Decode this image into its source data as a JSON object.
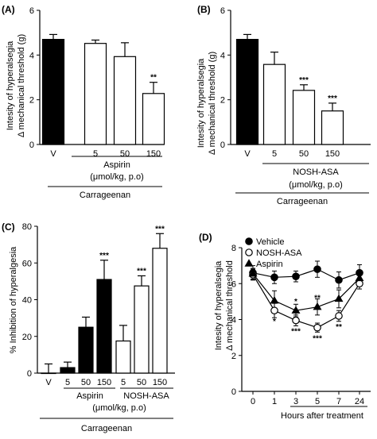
{
  "colors": {
    "filled": "#000000",
    "open": "#ffffff",
    "stroke": "#000000"
  },
  "panels": {
    "A": {
      "label": "(A)",
      "ylabel1": "Intesity of hyperalsegia",
      "ylabel2": "Δ mechanical threshold (g)",
      "bracket1": "Aspirin",
      "bracket1b": "(μmol/kg, p.o)",
      "bracket2": "Carrageenan"
    },
    "B": {
      "label": "(B)",
      "ylabel1": "Intesity of hyperalsegia",
      "ylabel2": "Δ mechanical threshold (g)",
      "bracket1": "NOSH-ASA",
      "bracket1b": "(μmol/kg, p.o)",
      "bracket2": "Carrageenan"
    },
    "C": {
      "label": "(C)",
      "ylabel": "% Inhibition of hyperalgesia",
      "bracket1": "Aspirin",
      "bracket1c": "NOSH-ASA",
      "bracket1b": "(μmol/kg, p.o)",
      "bracket2": "Carrageenan"
    },
    "D": {
      "label": "(D)",
      "ylabel1": "Intesity of hyperalsegia",
      "ylabel2": "Δ mechanical threshold",
      "xlabel": "Hours after treatment"
    }
  },
  "chart_data": [
    {
      "panel": "A",
      "type": "bar",
      "categories": [
        "V",
        "5",
        "50",
        "150"
      ],
      "values": [
        4.7,
        4.52,
        3.93,
        2.28
      ],
      "errors": [
        0.22,
        0.15,
        0.62,
        0.5
      ],
      "fill": [
        "filled",
        "open",
        "open",
        "open"
      ],
      "annotations": [
        "",
        "",
        "",
        "**"
      ],
      "ylim": [
        0,
        6
      ],
      "yticks": [
        0,
        2,
        4,
        6
      ]
    },
    {
      "panel": "B",
      "type": "bar",
      "categories": [
        "V",
        "5",
        "50",
        "150"
      ],
      "values": [
        4.7,
        3.58,
        2.42,
        1.5
      ],
      "errors": [
        0.22,
        0.55,
        0.25,
        0.35
      ],
      "fill": [
        "filled",
        "open",
        "open",
        "open"
      ],
      "annotations": [
        "",
        "",
        "***",
        "***"
      ],
      "ylim": [
        0,
        6
      ],
      "yticks": [
        0,
        2,
        4,
        6
      ]
    },
    {
      "panel": "C",
      "type": "bar",
      "categories": [
        "V",
        "5",
        "50",
        "150",
        "5",
        "50",
        "150"
      ],
      "values": [
        0,
        3,
        25,
        51,
        17.5,
        47.5,
        68
      ],
      "errors": [
        5,
        3,
        5.5,
        10.5,
        8.5,
        5.5,
        8
      ],
      "fill": [
        "open",
        "filled",
        "filled",
        "filled",
        "open",
        "open",
        "open"
      ],
      "annotations": [
        "",
        "",
        "",
        "***",
        "",
        "***",
        "***"
      ],
      "ylim": [
        0,
        80
      ],
      "yticks": [
        0,
        20,
        40,
        60,
        80
      ]
    },
    {
      "panel": "D",
      "type": "line",
      "x": [
        "0",
        "1",
        "3",
        "5",
        "7",
        "24"
      ],
      "series": [
        {
          "name": "Vehicle",
          "marker": "circle-filled",
          "values": [
            6.6,
            6.35,
            6.4,
            6.8,
            6.2,
            6.6
          ],
          "errors": [
            0.4,
            0.35,
            0.3,
            0.45,
            0.45,
            0.45
          ],
          "annotations": [
            "",
            "",
            "",
            "",
            "",
            ""
          ]
        },
        {
          "name": "NOSH-ASA",
          "marker": "circle-open",
          "values": [
            6.5,
            4.5,
            3.95,
            3.55,
            4.2,
            6.0
          ],
          "errors": [
            0.3,
            0.4,
            0.3,
            0.25,
            0.3,
            0.3
          ],
          "annotations": [
            "",
            "*",
            "***",
            "***",
            "**",
            ""
          ]
        },
        {
          "name": "Aspirin",
          "marker": "triangle-filled",
          "values": [
            6.55,
            5.05,
            4.5,
            4.7,
            5.15,
            6.3
          ],
          "errors": [
            0.3,
            0.55,
            0.35,
            0.45,
            0.5,
            0.3
          ],
          "annotations": [
            "",
            "",
            "*",
            "**",
            "",
            ""
          ]
        }
      ],
      "ylim": [
        0,
        8
      ],
      "yticks": [
        0,
        2,
        4,
        6,
        8
      ]
    }
  ]
}
